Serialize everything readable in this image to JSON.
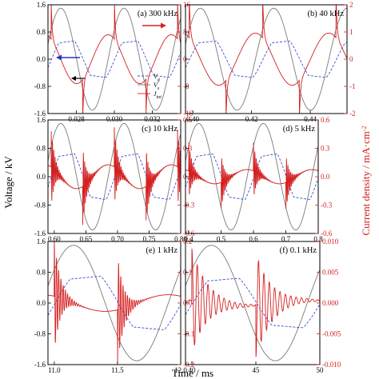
{
  "figure": {
    "ylabel_left": "Voltage / kV",
    "ylabel_right": "Current density / mA·cm",
    "ylabel_right_exp": "-2",
    "xlabel": "Time / ms",
    "colors": {
      "gap_voltage": "#7a7a7a",
      "surface_voltage": "#3b4fd6",
      "current": "#d42020"
    },
    "legend": {
      "labels": [
        "V",
        "V",
        "J"
      ],
      "subscripts": [
        "g",
        "s",
        "tot"
      ]
    }
  },
  "chart_data": [
    {
      "type": "line",
      "label": "(a) 300 kHz",
      "xlim": [
        0.0265,
        0.0335
      ],
      "ylim": [
        -1.6,
        1.6
      ],
      "ylim_right": [
        -16,
        16
      ],
      "xticks": [
        "0.028",
        "0.030",
        "0.032"
      ],
      "xtick_values": [
        0.028,
        0.03,
        0.032
      ],
      "yticks": [
        "1.6",
        "0.8",
        "0.0",
        "-0.8",
        "-1.6"
      ],
      "yticks_right": [
        "16",
        "8",
        "0",
        "-8",
        "-16"
      ],
      "freq_khz": 300,
      "vs_amp": 0.5,
      "spike": 12,
      "decay": 0,
      "tail": 0.6,
      "ringing": false,
      "series": [
        {
          "name": "V_g",
          "axis": "left",
          "values": "sinusoid, amplitude 1.5 kV"
        },
        {
          "name": "V_s",
          "axis": "left",
          "values": "clamped wave, amplitude 0.5 kV"
        },
        {
          "name": "J_tot",
          "axis": "right",
          "values": "displacement current with discharge spikes, peak 12 mA/cm2"
        }
      ]
    },
    {
      "type": "line",
      "label": "(b) 40 kHz",
      "xlim": [
        0.3975,
        0.4525
      ],
      "ylim": [
        -1.6,
        1.6
      ],
      "ylim_right": [
        -2,
        2
      ],
      "xticks": [
        "0.40",
        "0.42",
        "0.44"
      ],
      "xtick_values": [
        0.4,
        0.42,
        0.44
      ],
      "yticks": [],
      "yticks_right": [
        "2",
        "1",
        "0",
        "-1",
        "-2"
      ],
      "freq_khz": 40,
      "vs_amp": 0.5,
      "spike": 1.6,
      "decay": 0,
      "tail": 0.6,
      "ringing": false
    },
    {
      "type": "line",
      "label": "(c) 10 kHz",
      "xlim": [
        0.59,
        0.8
      ],
      "ylim": [
        -1.6,
        1.6
      ],
      "ylim_right": [
        -0.6,
        0.6
      ],
      "xticks": [
        "0.60",
        "0.65",
        "0.70",
        "0.75",
        "0.80"
      ],
      "xtick_values": [
        0.6,
        0.65,
        0.7,
        0.75,
        0.8
      ],
      "yticks": [
        "1.6",
        "0.8",
        "0.0",
        "-0.8",
        "-1.6"
      ],
      "yticks_right": [
        "0.6",
        "0.3",
        "0.0",
        "-0.3",
        "-0.6"
      ],
      "freq_khz": 10,
      "vs_amp": 0.6,
      "spike": 0.42,
      "decay": 0.006,
      "tail": 0.3,
      "ringing": true
    },
    {
      "type": "line",
      "label": "(d) 5 kHz",
      "xlim": [
        0.39,
        0.8
      ],
      "ylim": [
        -1.6,
        1.6
      ],
      "ylim_right": [
        -0.6,
        0.6
      ],
      "xticks": [
        "0.4",
        "0.5",
        "0.6",
        "0.7",
        "0.8"
      ],
      "xtick_values": [
        0.4,
        0.5,
        0.6,
        0.7,
        0.8
      ],
      "yticks": [],
      "yticks_right": [
        "0.6",
        "0.3",
        "0.0",
        "-0.3",
        "-0.6"
      ],
      "freq_khz": 5,
      "vs_amp": 0.6,
      "spike": 0.3,
      "decay": 0.012,
      "tail": 0.25,
      "ringing": true
    },
    {
      "type": "line",
      "label": "(e) 1 kHz",
      "xlim": [
        10.95,
        12.0
      ],
      "ylim": [
        -1.6,
        1.6
      ],
      "ylim_right": [
        -0.2,
        0.2
      ],
      "xticks": [
        "11.0",
        "11.5",
        "12.0"
      ],
      "xtick_values": [
        11.0,
        11.5,
        12.0
      ],
      "yticks": [
        "1.6",
        "0.8",
        "0.0",
        "-0.8",
        "-1.6"
      ],
      "yticks_right": [
        "0.2",
        "0.1",
        "0.0",
        "-0.1",
        "-0.2"
      ],
      "freq_khz": 1,
      "vs_amp": 0.65,
      "spike": 0.18,
      "decay": 0.05,
      "tail": 0.15,
      "ringing": true
    },
    {
      "type": "line",
      "label": "(f) 0.1 kHz",
      "xlim": [
        39.5,
        50.0
      ],
      "ylim": [
        -1.6,
        1.6
      ],
      "ylim_right": [
        -0.01,
        0.01
      ],
      "xticks": [
        "40",
        "45",
        "50"
      ],
      "xtick_values": [
        40,
        45,
        50
      ],
      "yticks": [],
      "yticks_right": [
        "0.010",
        "0.005",
        "0.000",
        "-0.005",
        "-0.010"
      ],
      "freq_khz": 0.1,
      "vs_amp": 0.6,
      "spike": 0.0085,
      "decay": 1.2,
      "tail": 0.05,
      "ringing": true
    }
  ]
}
